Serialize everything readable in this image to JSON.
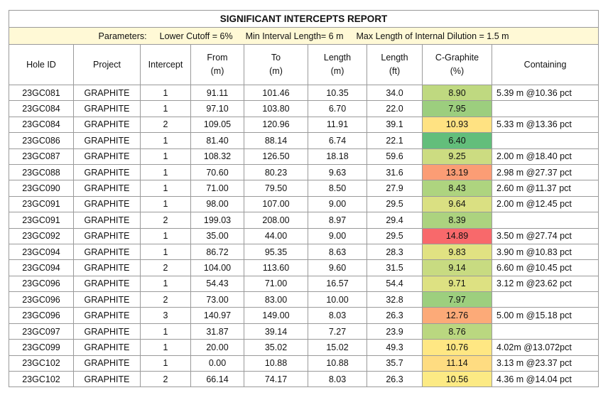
{
  "title": "SIGNIFICANT INTERCEPTS REPORT",
  "parameters": [
    "Parameters:",
    "Lower Cutoff = 6%",
    "Min Interval Length= 6 m",
    "Max Length of Internal Dilution = 1.5 m"
  ],
  "table": {
    "headers": [
      [
        "Hole ID"
      ],
      [
        "Project"
      ],
      [
        "Intercept"
      ],
      [
        "From",
        "(m)"
      ],
      [
        "To",
        "(m)"
      ],
      [
        "Length",
        "(m)"
      ],
      [
        "Length",
        "(ft)"
      ],
      [
        "C-Graphite",
        "(%)"
      ],
      [
        "Containing"
      ]
    ],
    "rows": [
      [
        "23GC081",
        "GRAPHITE",
        "1",
        "91.11",
        "101.46",
        "10.35",
        "34.0",
        "8.90",
        "5.39 m @10.36 pct"
      ],
      [
        "23GC084",
        "GRAPHITE",
        "1",
        "97.10",
        "103.80",
        "6.70",
        "22.0",
        "7.95",
        null
      ],
      [
        "23GC084",
        "GRAPHITE",
        "2",
        "109.05",
        "120.96",
        "11.91",
        "39.1",
        "10.93",
        "5.33 m @13.36 pct"
      ],
      [
        "23GC086",
        "GRAPHITE",
        "1",
        "81.40",
        "88.14",
        "6.74",
        "22.1",
        "6.40",
        null
      ],
      [
        "23GC087",
        "GRAPHITE",
        "1",
        "108.32",
        "126.50",
        "18.18",
        "59.6",
        "9.25",
        "2.00 m @18.40 pct"
      ],
      [
        "23GC088",
        "GRAPHITE",
        "1",
        "70.60",
        "80.23",
        "9.63",
        "31.6",
        "13.19",
        "2.98 m @27.37 pct"
      ],
      [
        "23GC090",
        "GRAPHITE",
        "1",
        "71.00",
        "79.50",
        "8.50",
        "27.9",
        "8.43",
        "2.60 m @11.37 pct"
      ],
      [
        "23GC091",
        "GRAPHITE",
        "1",
        "98.00",
        "107.00",
        "9.00",
        "29.5",
        "9.64",
        "2.00 m @12.45 pct"
      ],
      [
        "23GC091",
        "GRAPHITE",
        "2",
        "199.03",
        "208.00",
        "8.97",
        "29.4",
        "8.39",
        null
      ],
      [
        "23GC092",
        "GRAPHITE",
        "1",
        "35.00",
        "44.00",
        "9.00",
        "29.5",
        "14.89",
        "3.50 m @27.74 pct"
      ],
      [
        "23GC094",
        "GRAPHITE",
        "1",
        "86.72",
        "95.35",
        "8.63",
        "28.3",
        "9.83",
        "3.90 m @10.83 pct"
      ],
      [
        "23GC094",
        "GRAPHITE",
        "2",
        "104.00",
        "113.60",
        "9.60",
        "31.5",
        "9.14",
        "6.60 m @10.45 pct"
      ],
      [
        "23GC096",
        "GRAPHITE",
        "1",
        "54.43",
        "71.00",
        "16.57",
        "54.4",
        "9.71",
        "3.12 m @23.62 pct"
      ],
      [
        "23GC096",
        "GRAPHITE",
        "2",
        "73.00",
        "83.00",
        "10.00",
        "32.8",
        "7.97",
        null
      ],
      [
        "23GC096",
        "GRAPHITE",
        "3",
        "140.97",
        "149.00",
        "8.03",
        "26.3",
        "12.76",
        "5.00 m @15.18 pct"
      ],
      [
        "23GC097",
        "GRAPHITE",
        "1",
        "31.87",
        "39.14",
        "7.27",
        "23.9",
        "8.76",
        null
      ],
      [
        "23GC099",
        "GRAPHITE",
        "1",
        "20.00",
        "35.02",
        "15.02",
        "49.3",
        "10.76",
        "4.02m @13.072pct"
      ],
      [
        "23GC102",
        "GRAPHITE",
        "1",
        "0.00",
        "10.88",
        "10.88",
        "35.7",
        "11.14",
        "3.13 m @23.37 pct"
      ],
      [
        "23GC102",
        "GRAPHITE",
        "2",
        "66.14",
        "74.17",
        "8.03",
        "26.3",
        "10.56",
        "4.36 m @14.04 pct"
      ]
    ]
  }
}
